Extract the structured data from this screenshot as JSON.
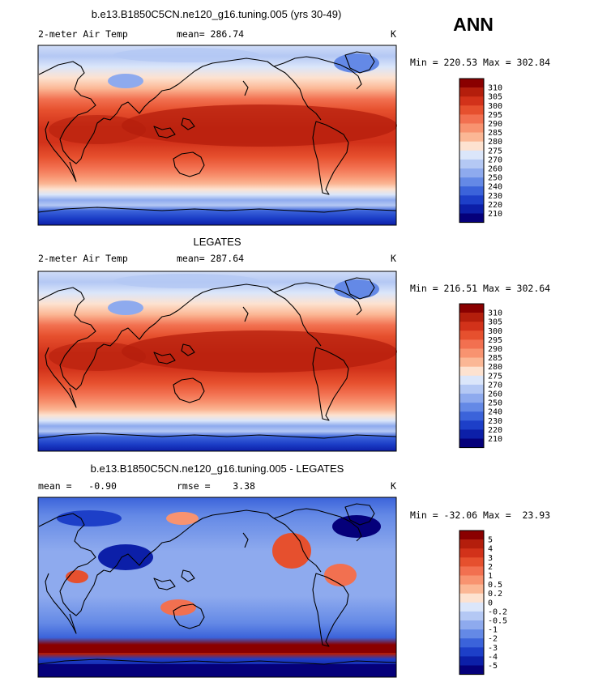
{
  "season": "ANN",
  "panels": [
    {
      "title": "b.e13.B1850C5CN.ne120_g16.tuning.005 (yrs 30-49)",
      "left_label": "2-meter Air Temp",
      "center_label": "mean= 286.74",
      "right_label": "K",
      "min_max": "Min = 220.53 Max = 302.84",
      "kind": "model"
    },
    {
      "title": "LEGATES",
      "left_label": "2-meter Air Temp",
      "center_label": "mean= 287.64",
      "right_label": "K",
      "min_max": "Min = 216.51 Max = 302.64",
      "kind": "obs"
    },
    {
      "title": "b.e13.B1850C5CN.ne120_g16.tuning.005 - LEGATES",
      "left_label": "mean =   -0.90",
      "center_label": "rmse =    3.38",
      "right_label": "K",
      "min_max": "Min = -32.06 Max =  23.93",
      "kind": "diff"
    }
  ],
  "colorbars": {
    "temperature": {
      "labels": [
        "310",
        "305",
        "300",
        "295",
        "290",
        "285",
        "280",
        "275",
        "270",
        "260",
        "250",
        "240",
        "230",
        "220",
        "210"
      ],
      "colors": [
        "#8a0000",
        "#b41e0c",
        "#d2321a",
        "#e6502e",
        "#f27050",
        "#f89370",
        "#fbb795",
        "#fde2d0",
        "#dbe6fa",
        "#b4c8f4",
        "#8eaaee",
        "#6489e6",
        "#3b63da",
        "#1d3fc8",
        "#0c1fa8",
        "#05007a"
      ]
    },
    "difference": {
      "labels": [
        "5",
        "4",
        "3",
        "2",
        "1",
        "0.5",
        "0.2",
        "0",
        "-0.2",
        "-0.5",
        "-1",
        "-2",
        "-3",
        "-4",
        "-5"
      ],
      "colors": [
        "#8a0000",
        "#b41e0c",
        "#d2321a",
        "#e6502e",
        "#f27050",
        "#f89370",
        "#fbb795",
        "#fde2d0",
        "#dbe6fa",
        "#b4c8f4",
        "#8eaaee",
        "#6489e6",
        "#3b63da",
        "#1d3fc8",
        "#0c1fa8",
        "#05007a"
      ]
    }
  }
}
